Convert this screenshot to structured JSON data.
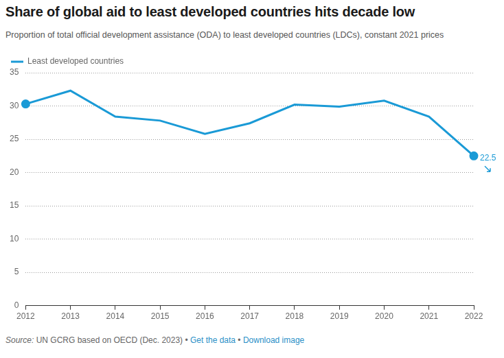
{
  "chart_data": {
    "type": "line",
    "title": "Share of global aid to least developed countries hits decade low",
    "subtitle": "Proportion of total official development assistance (ODA) to least developed countries (LDCs), constant 2021 prices",
    "categories": [
      "2012",
      "2013",
      "2014",
      "2015",
      "2016",
      "2017",
      "2018",
      "2019",
      "2020",
      "2021",
      "2022"
    ],
    "series": [
      {
        "name": "Least developed countries",
        "color": "#1a9ad6",
        "values": [
          30.3,
          32.3,
          28.4,
          27.8,
          25.8,
          27.4,
          30.2,
          29.9,
          30.8,
          28.4,
          22.5
        ]
      }
    ],
    "ylim": [
      0,
      35
    ],
    "yticks": [
      0,
      5,
      10,
      15,
      20,
      25,
      30,
      35
    ],
    "grid": true,
    "legend": "top-left",
    "annotations": [
      {
        "x": "2022",
        "y": 22.5,
        "text": "22.5"
      }
    ],
    "source_label": "Source:",
    "source": "UN GCRG based on OECD (Dec. 2023)",
    "separator": "•",
    "links": [
      "Get the data",
      "Download image"
    ]
  }
}
